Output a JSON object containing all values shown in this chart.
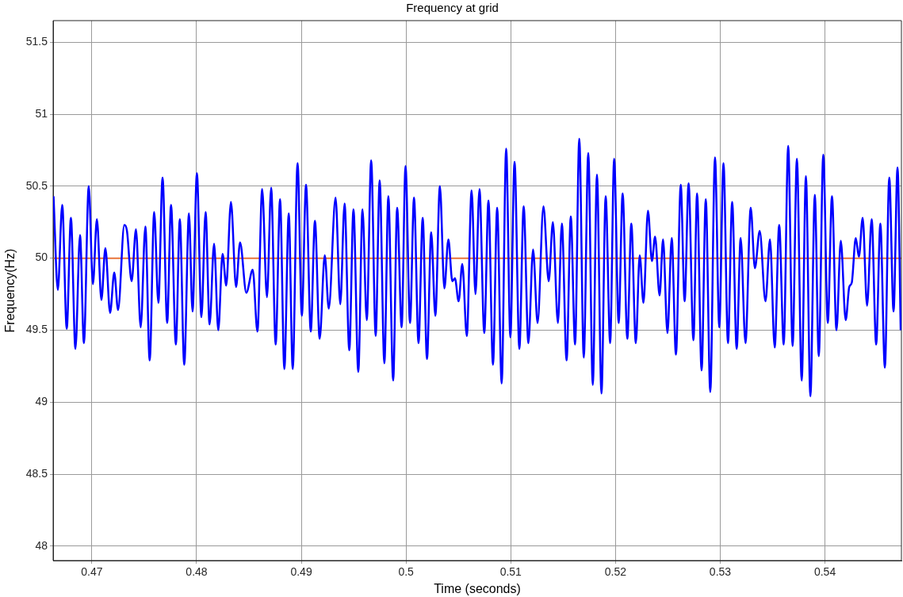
{
  "chart_data": {
    "type": "line",
    "title": "Frequency at grid",
    "xlabel": "Time (seconds)",
    "ylabel": "Frequency(Hz)",
    "xlim": [
      0.4663,
      0.5473
    ],
    "xticks": [
      0.47,
      0.48,
      0.49,
      {
        "value": 0.5,
        "label": "0.5"
      },
      0.51,
      0.52,
      0.53,
      0.54
    ],
    "ylim": [
      47.9,
      51.65
    ],
    "yticks": [
      48,
      48.5,
      49,
      49.5,
      50,
      50.5,
      51,
      51.5
    ],
    "grid": true,
    "legend": false,
    "marker": "none",
    "line_style": "solid",
    "ref_lines": [
      {
        "axis": "y",
        "value": 50,
        "color": "#e8743b"
      }
    ],
    "series": [
      {
        "color": "#0000ff",
        "x": [
          0.46634,
          0.46675,
          0.46717,
          0.4676,
          0.468,
          0.46843,
          0.46887,
          0.46924,
          0.4697,
          0.4701,
          0.47048,
          0.47091,
          0.47129,
          0.47174,
          0.47214,
          0.4725,
          0.4731,
          0.47335,
          0.4738,
          0.47421,
          0.47466,
          0.47511,
          0.47552,
          0.47595,
          0.47635,
          0.47675,
          0.47719,
          0.47756,
          0.47802,
          0.4784,
          0.47882,
          0.47927,
          0.47961,
          0.48003,
          0.48046,
          0.48086,
          0.48124,
          0.48167,
          0.48207,
          0.48248,
          0.48283,
          0.48328,
          0.48377,
          0.48415,
          0.48475,
          0.48536,
          0.48581,
          0.48626,
          0.48672,
          0.48712,
          0.48755,
          0.48797,
          0.48838,
          0.4888,
          0.48918,
          0.48964,
          0.49005,
          0.49045,
          0.4909,
          0.4913,
          0.49175,
          0.49224,
          0.49262,
          0.49327,
          0.49372,
          0.49413,
          0.49458,
          0.49498,
          0.49544,
          0.49584,
          0.49625,
          0.49667,
          0.4971,
          0.49748,
          0.49793,
          0.49831,
          0.49877,
          0.49915,
          0.49958,
          0.49995,
          0.50038,
          0.50076,
          0.50119,
          0.50159,
          0.502,
          0.5024,
          0.5028,
          0.50323,
          0.50366,
          0.50404,
          0.50442,
          0.50467,
          0.50502,
          0.50537,
          0.5058,
          0.50626,
          0.50663,
          0.50701,
          0.50747,
          0.50787,
          0.5083,
          0.5087,
          0.50913,
          0.50956,
          0.50996,
          0.51036,
          0.51082,
          0.51123,
          0.51168,
          0.51213,
          0.51256,
          0.51312,
          0.51362,
          0.51402,
          0.5145,
          0.51488,
          0.51533,
          0.51573,
          0.51614,
          0.51654,
          0.51697,
          0.5174,
          0.51783,
          0.51823,
          0.51866,
          0.51906,
          0.51949,
          0.51987,
          0.5203,
          0.52068,
          0.52113,
          0.52151,
          0.52194,
          0.52231,
          0.52267,
          0.5231,
          0.52348,
          0.52378,
          0.52421,
          0.52454,
          0.52496,
          0.52537,
          0.52577,
          0.52623,
          0.5266,
          0.52698,
          0.52744,
          0.52779,
          0.52822,
          0.52862,
          0.52905,
          0.5295,
          0.52991,
          0.53031,
          0.53074,
          0.53114,
          0.53157,
          0.53195,
          0.53241,
          0.53291,
          0.53331,
          0.53377,
          0.53432,
          0.53475,
          0.5352,
          0.53563,
          0.53606,
          0.53649,
          0.53691,
          0.53732,
          0.53778,
          0.53818,
          0.53861,
          0.53903,
          0.53941,
          0.53984,
          0.54027,
          0.54067,
          0.5411,
          0.54151,
          0.54198,
          0.54232,
          0.54256,
          0.54294,
          0.54324,
          0.5436,
          0.54402,
          0.54446,
          0.54489,
          0.54529,
          0.54572,
          0.54614,
          0.54655,
          0.54693,
          0.54723
        ],
        "values": [
          50.43,
          49.78,
          50.37,
          49.51,
          50.28,
          49.37,
          50.16,
          49.41,
          50.5,
          49.82,
          50.27,
          49.71,
          50.07,
          49.62,
          49.9,
          49.64,
          50.23,
          50.19,
          49.84,
          50.2,
          49.52,
          50.22,
          49.29,
          50.32,
          49.69,
          50.56,
          49.55,
          50.37,
          49.4,
          50.27,
          49.26,
          50.31,
          49.63,
          50.59,
          49.59,
          50.32,
          49.54,
          50.1,
          49.5,
          50.03,
          49.81,
          50.39,
          49.8,
          50.11,
          49.76,
          49.92,
          49.49,
          50.48,
          49.73,
          50.49,
          49.4,
          50.41,
          49.23,
          50.31,
          49.23,
          50.66,
          49.6,
          50.51,
          49.49,
          50.26,
          49.44,
          50.02,
          49.65,
          50.42,
          49.68,
          50.38,
          49.36,
          50.34,
          49.21,
          50.34,
          49.57,
          50.68,
          49.46,
          50.54,
          49.27,
          50.43,
          49.15,
          50.35,
          49.52,
          50.64,
          49.55,
          50.42,
          49.41,
          50.28,
          49.3,
          50.18,
          49.6,
          50.5,
          49.79,
          50.13,
          49.84,
          49.86,
          49.7,
          49.96,
          49.46,
          50.47,
          49.75,
          50.48,
          49.48,
          50.4,
          49.26,
          50.35,
          49.13,
          50.76,
          49.45,
          50.67,
          49.37,
          50.36,
          49.41,
          50.06,
          49.55,
          50.36,
          49.84,
          50.25,
          49.55,
          50.24,
          49.29,
          50.29,
          49.4,
          50.83,
          49.31,
          50.73,
          49.12,
          50.58,
          49.06,
          50.43,
          49.41,
          50.69,
          49.55,
          50.45,
          49.44,
          50.24,
          49.41,
          50.02,
          49.69,
          50.33,
          49.98,
          50.15,
          49.74,
          50.13,
          49.48,
          50.14,
          49.33,
          50.51,
          49.7,
          50.52,
          49.43,
          50.45,
          49.22,
          50.41,
          49.07,
          50.7,
          49.52,
          50.66,
          49.41,
          50.39,
          49.37,
          50.14,
          49.41,
          50.35,
          49.93,
          50.19,
          49.7,
          50.13,
          49.38,
          50.23,
          49.4,
          50.78,
          49.39,
          50.69,
          49.15,
          50.57,
          49.04,
          50.44,
          49.32,
          50.72,
          49.55,
          50.43,
          49.5,
          50.12,
          49.57,
          49.8,
          49.83,
          50.14,
          50.01,
          50.28,
          49.67,
          50.27,
          49.4,
          50.24,
          49.24,
          50.56,
          49.63,
          50.63,
          49.5
        ]
      }
    ]
  }
}
